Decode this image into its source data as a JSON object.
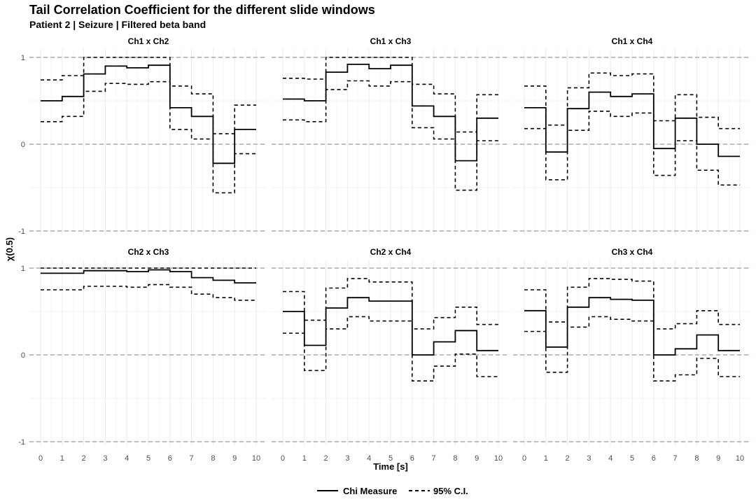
{
  "chart_data": {
    "type": "line",
    "step": true,
    "title": "Tail Correlation Coefficient for the different slide windows",
    "subtitle": "Patient 2 | Seizure | Filtered beta band",
    "xlabel": "Time [s]",
    "ylabel": "χ(0.5)",
    "xlim": [
      0,
      10
    ],
    "ylim": [
      -1,
      1
    ],
    "x_ticks": [
      "0",
      "1",
      "2",
      "3",
      "4",
      "5",
      "6",
      "7",
      "8",
      "9",
      "10"
    ],
    "y_ticks": [
      "1",
      "0",
      "-1"
    ],
    "reference_lines": [
      1,
      0,
      -1
    ],
    "grid": true,
    "legend_position": "bottom",
    "legend": [
      {
        "name": "Chi Measure",
        "style": "solid"
      },
      {
        "name": "95% C.I.",
        "style": "dashed"
      }
    ],
    "windows_start": [
      0,
      1,
      2,
      3,
      4,
      5,
      6,
      7,
      8,
      9
    ],
    "panels": [
      {
        "label": "Ch1 x Ch2",
        "chi": [
          0.5,
          0.55,
          0.81,
          0.9,
          0.88,
          0.91,
          0.42,
          0.32,
          -0.22,
          0.17
        ],
        "lower": [
          0.26,
          0.32,
          0.61,
          0.7,
          0.69,
          0.72,
          0.17,
          0.06,
          -0.56,
          -0.11
        ],
        "upper": [
          0.74,
          0.79,
          1.0,
          1.0,
          1.0,
          1.0,
          0.67,
          0.58,
          0.12,
          0.45
        ]
      },
      {
        "label": "Ch1 x Ch3",
        "chi": [
          0.52,
          0.5,
          0.83,
          0.92,
          0.87,
          0.91,
          0.44,
          0.32,
          -0.19,
          0.3
        ],
        "lower": [
          0.28,
          0.26,
          0.63,
          0.73,
          0.67,
          0.72,
          0.19,
          0.06,
          -0.53,
          0.04
        ],
        "upper": [
          0.76,
          0.75,
          1.0,
          1.0,
          1.0,
          1.0,
          0.69,
          0.58,
          0.14,
          0.57
        ]
      },
      {
        "label": "Ch1 x Ch4",
        "chi": [
          0.42,
          -0.09,
          0.41,
          0.6,
          0.55,
          0.58,
          -0.05,
          0.3,
          0.0,
          -0.14
        ],
        "lower": [
          0.18,
          -0.41,
          0.16,
          0.38,
          0.32,
          0.36,
          -0.36,
          0.04,
          -0.3,
          -0.47
        ],
        "upper": [
          0.67,
          0.22,
          0.65,
          0.82,
          0.79,
          0.81,
          0.27,
          0.57,
          0.31,
          0.18
        ]
      },
      {
        "label": "Ch2 x Ch3",
        "chi": [
          0.94,
          0.94,
          0.97,
          0.97,
          0.96,
          0.98,
          0.96,
          0.89,
          0.86,
          0.83
        ],
        "lower": [
          0.75,
          0.75,
          0.79,
          0.79,
          0.78,
          0.81,
          0.78,
          0.7,
          0.66,
          0.63
        ],
        "upper": [
          1.0,
          1.0,
          1.0,
          1.0,
          1.0,
          1.0,
          1.0,
          1.0,
          1.0,
          1.0
        ]
      },
      {
        "label": "Ch2 x Ch4",
        "chi": [
          0.5,
          0.11,
          0.54,
          0.66,
          0.62,
          0.62,
          0.0,
          0.15,
          0.28,
          0.05
        ],
        "lower": [
          0.25,
          -0.18,
          0.3,
          0.44,
          0.39,
          0.39,
          -0.3,
          -0.13,
          0.01,
          -0.25
        ],
        "upper": [
          0.73,
          0.4,
          0.77,
          0.88,
          0.84,
          0.84,
          0.3,
          0.43,
          0.55,
          0.35
        ]
      },
      {
        "label": "Ch3 x Ch4",
        "chi": [
          0.51,
          0.09,
          0.55,
          0.66,
          0.64,
          0.63,
          0.0,
          0.07,
          0.23,
          0.05
        ],
        "lower": [
          0.27,
          -0.2,
          0.32,
          0.44,
          0.41,
          0.39,
          -0.3,
          -0.23,
          -0.04,
          -0.25
        ],
        "upper": [
          0.75,
          0.38,
          0.78,
          0.88,
          0.87,
          0.85,
          0.3,
          0.36,
          0.51,
          0.35
        ]
      }
    ]
  }
}
